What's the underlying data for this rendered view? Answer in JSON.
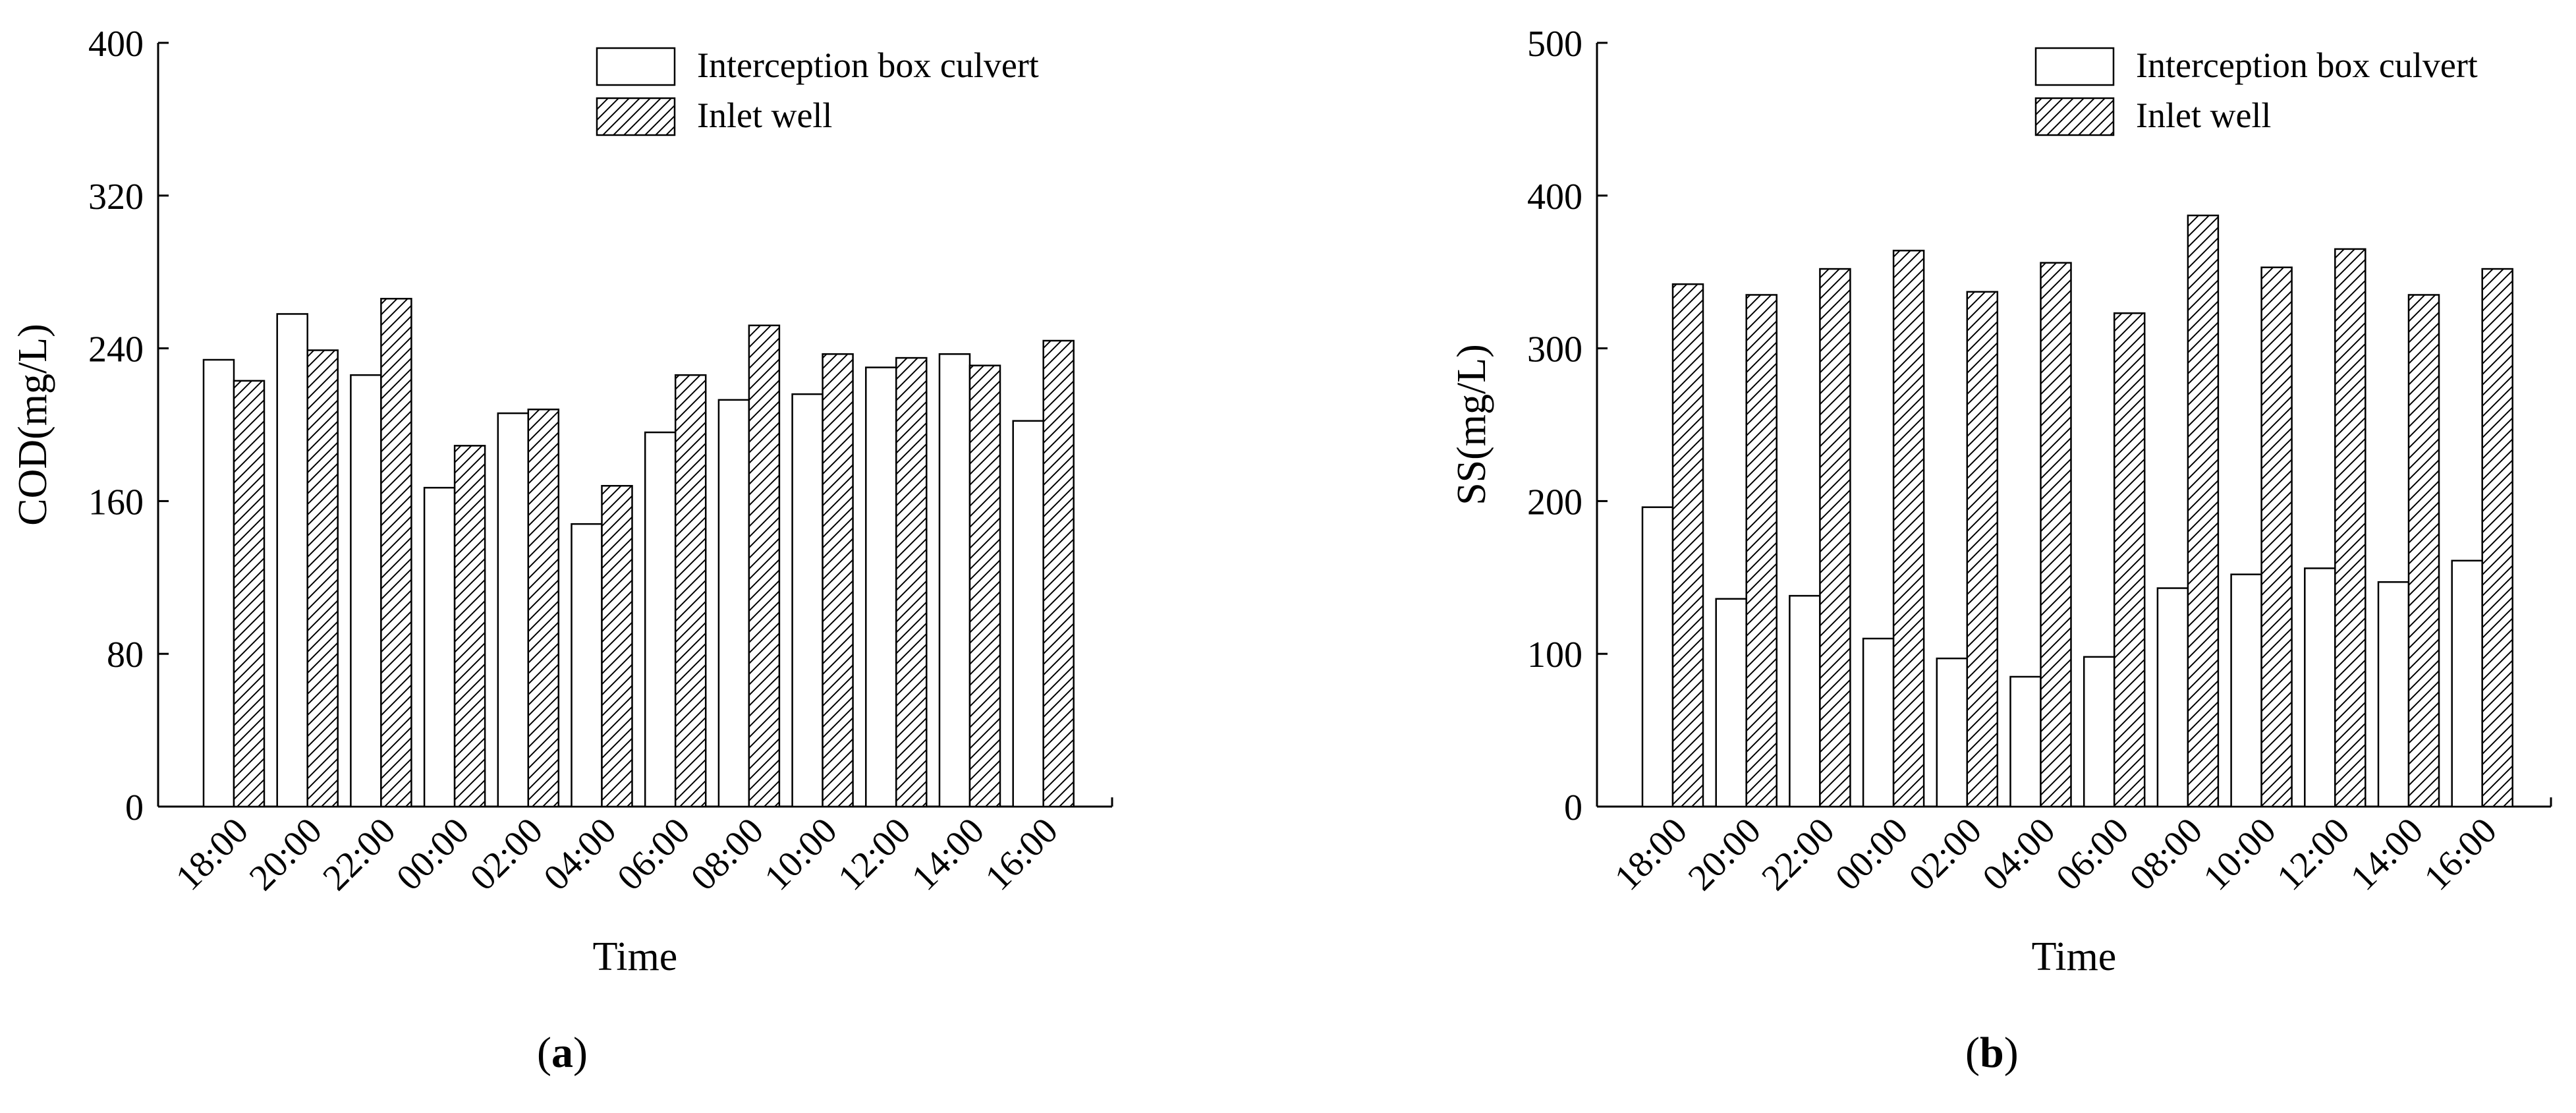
{
  "figure": {
    "panels": [
      {
        "letter": "a"
      },
      {
        "letter": "b"
      }
    ]
  },
  "chart_data": [
    {
      "type": "bar",
      "title": "",
      "xlabel": "Time",
      "ylabel": "COD(mg/L)",
      "categories": [
        "18:00",
        "20:00",
        "22:00",
        "00:00",
        "02:00",
        "04:00",
        "06:00",
        "08:00",
        "10:00",
        "12:00",
        "14:00",
        "16:00"
      ],
      "ylim": [
        0,
        400
      ],
      "yticks": [
        0,
        80,
        160,
        240,
        320,
        400
      ],
      "legend_position": "top-right",
      "grid": false,
      "series": [
        {
          "name": "Interception box culvert",
          "pattern": "blank",
          "values": [
            234,
            258,
            226,
            167,
            206,
            148,
            196,
            213,
            216,
            230,
            237,
            202
          ]
        },
        {
          "name": "Inlet well",
          "pattern": "hatched",
          "values": [
            223,
            239,
            266,
            189,
            208,
            168,
            226,
            252,
            237,
            235,
            231,
            244
          ]
        }
      ]
    },
    {
      "type": "bar",
      "title": "",
      "xlabel": "Time",
      "ylabel": "SS(mg/L)",
      "categories": [
        "18:00",
        "20:00",
        "22:00",
        "00:00",
        "02:00",
        "04:00",
        "06:00",
        "08:00",
        "10:00",
        "12:00",
        "14:00",
        "16:00"
      ],
      "ylim": [
        0,
        500
      ],
      "yticks": [
        0,
        100,
        200,
        300,
        400,
        500
      ],
      "legend_position": "top-right",
      "grid": false,
      "series": [
        {
          "name": "Interception box culvert",
          "pattern": "blank",
          "values": [
            196,
            136,
            138,
            110,
            97,
            85,
            98,
            143,
            152,
            156,
            147,
            161
          ]
        },
        {
          "name": "Inlet well",
          "pattern": "hatched",
          "values": [
            342,
            335,
            352,
            364,
            337,
            356,
            323,
            387,
            353,
            365,
            335,
            352
          ]
        }
      ]
    }
  ]
}
